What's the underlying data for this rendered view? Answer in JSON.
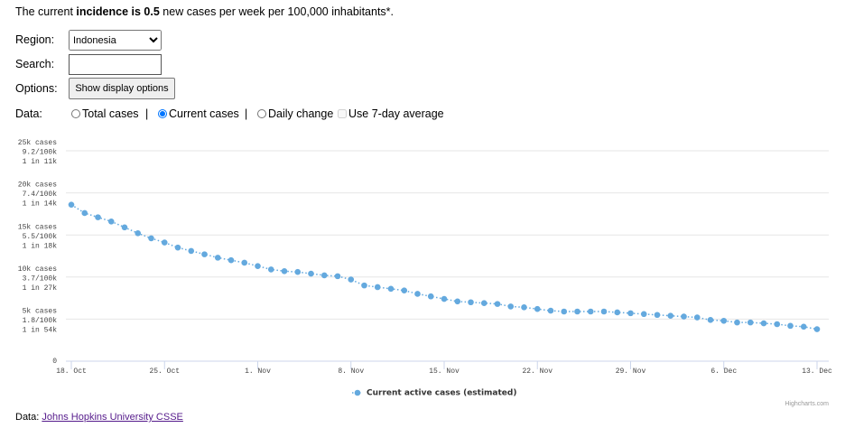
{
  "header": {
    "text_before": "The current ",
    "bold": "incidence is 0.5",
    "text_after": " new cases per week per 100,000 inhabitants*."
  },
  "form": {
    "region_label": "Region:",
    "region_value": "Indonesia",
    "search_label": "Search:",
    "options_label": "Options:",
    "options_button": "Show display options",
    "data_label": "Data:",
    "data_options": [
      "Total cases",
      "Current cases",
      "Daily change"
    ],
    "selected_data_option": 1,
    "separator": "|",
    "average_option": "Use 7-day average"
  },
  "chart_data": {
    "type": "line",
    "categories": [
      "18. Oct",
      null,
      null,
      null,
      null,
      null,
      null,
      "25. Oct",
      null,
      null,
      null,
      null,
      null,
      null,
      "1. Nov",
      null,
      null,
      null,
      null,
      null,
      null,
      "8. Nov",
      null,
      null,
      null,
      null,
      null,
      null,
      "15. Nov",
      null,
      null,
      null,
      null,
      null,
      null,
      "22. Nov",
      null,
      null,
      null,
      null,
      null,
      null,
      "29. Nov",
      null,
      null,
      null,
      null,
      null,
      null,
      "6. Dec",
      null,
      null,
      null,
      null,
      null,
      null,
      "13. Dec"
    ],
    "series": [
      {
        "name": "Current active cases (estimated)",
        "color": "#64a9de",
        "values": [
          18600,
          17600,
          17100,
          16600,
          15900,
          15200,
          14600,
          14100,
          13500,
          13100,
          12700,
          12300,
          12000,
          11700,
          11300,
          10900,
          10700,
          10600,
          10400,
          10200,
          10100,
          9700,
          9000,
          8800,
          8600,
          8400,
          8000,
          7700,
          7400,
          7100,
          7000,
          6900,
          6800,
          6500,
          6400,
          6200,
          6000,
          5900,
          5900,
          5900,
          5900,
          5800,
          5700,
          5600,
          5500,
          5400,
          5300,
          5200,
          4900,
          4800,
          4600,
          4600,
          4500,
          4400,
          4200,
          4100,
          3800
        ]
      }
    ],
    "ylim": [
      0,
      25000
    ],
    "yticks": [
      0,
      {
        "value": 5000,
        "label": [
          "5k cases",
          "1.8/100k",
          "1 in 54k"
        ]
      },
      {
        "value": 10000,
        "label": [
          "10k cases",
          "3.7/100k",
          "1 in 27k"
        ]
      },
      {
        "value": 15000,
        "label": [
          "15k cases",
          "5.5/100k",
          "1 in 18k"
        ]
      },
      {
        "value": 20000,
        "label": [
          "20k cases",
          "7.4/100k",
          "1 in 14k"
        ]
      },
      {
        "value": 25000,
        "label": [
          "25k cases",
          "9.2/100k",
          "1 in 11k"
        ]
      }
    ],
    "grid": true,
    "legend": "bottom",
    "credits": "Highcharts.com"
  },
  "footer": {
    "label": "Data:",
    "link": "Johns Hopkins University CSSE"
  }
}
